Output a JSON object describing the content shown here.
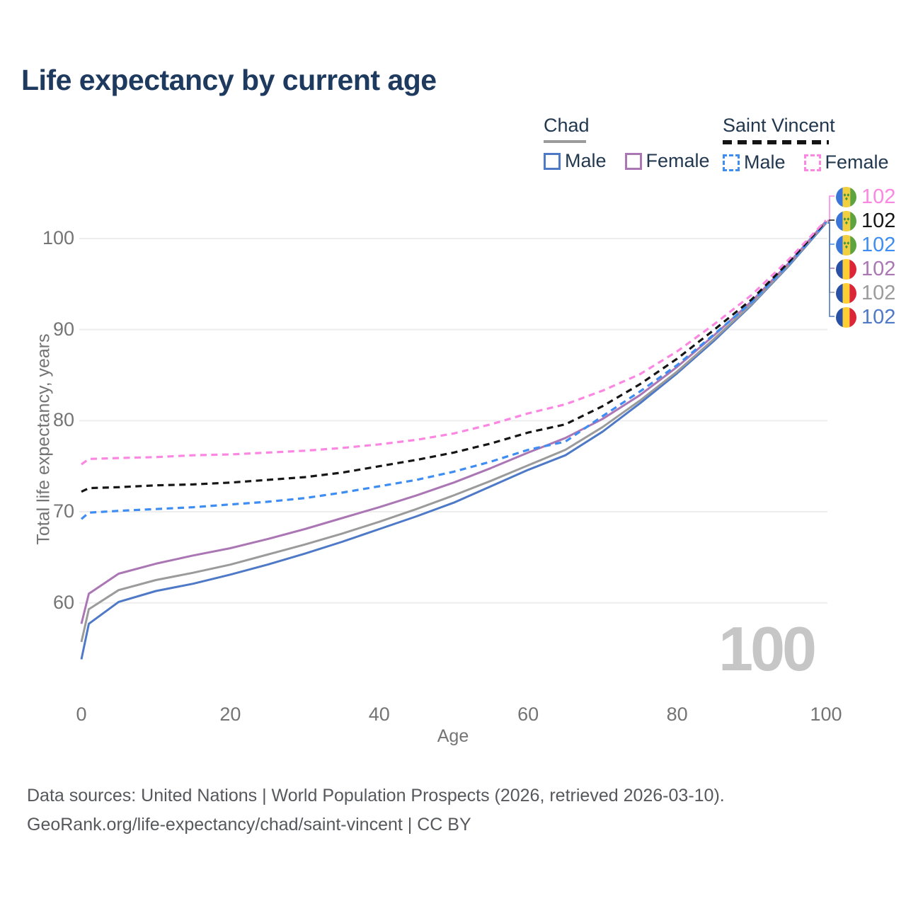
{
  "title": "Life expectancy by current age",
  "watermark_age": "100",
  "footer": {
    "line1": "Data sources: United Nations | World Population Prospects (2026, retrieved 2026-03-10).",
    "line2": "GeoRank.org/life-expectancy/chad/saint-vincent | CC BY"
  },
  "legend": {
    "chad": {
      "name": "Chad",
      "male_label": "Male",
      "female_label": "Female"
    },
    "saint_vincent": {
      "name": "Saint Vincent",
      "male_label": "Male",
      "female_label": "Female"
    }
  },
  "colors": {
    "title_navy": "#1e3a5f",
    "legend_text": "#22384f",
    "axis_gray": "#747474",
    "gridline": "#ededed",
    "watermark_gray": "#c6c6c6",
    "chad_male_blue": "#4e79c7",
    "chad_both_gray": "#9b9b9b",
    "chad_female_purple": "#ab76b4",
    "sv_male_azure": "#3e8df2",
    "sv_both_black": "#161616",
    "sv_female_pink": "#fc87e2"
  },
  "chart_data": {
    "type": "line",
    "title": "Life expectancy by current age",
    "xlabel": "Age",
    "ylabel": "Total life expectancy, years",
    "x_ticks": [
      0,
      20,
      40,
      60,
      80,
      100
    ],
    "y_ticks": [
      60,
      70,
      80,
      90,
      100
    ],
    "xlim": [
      0,
      100
    ],
    "ylim": [
      53,
      104
    ],
    "grid": "horizontal-only",
    "legend_position": "top-right",
    "ages": [
      0,
      1,
      5,
      10,
      15,
      20,
      25,
      30,
      35,
      40,
      45,
      50,
      55,
      60,
      65,
      70,
      75,
      80,
      85,
      90,
      95,
      100
    ],
    "series": [
      {
        "name": "Chad Male",
        "country": "Chad",
        "sex": "Male",
        "style": "solid",
        "color": "#4e79c7",
        "end_label": "102",
        "flag": "chad",
        "values": [
          53.8,
          57.7,
          60.1,
          61.3,
          62.1,
          63.1,
          64.2,
          65.4,
          66.7,
          68.1,
          69.5,
          71.0,
          72.8,
          74.6,
          76.2,
          78.8,
          81.9,
          85.2,
          88.8,
          92.7,
          97.0,
          101.7
        ]
      },
      {
        "name": "Chad Both sexes",
        "country": "Chad",
        "sex": "Both",
        "style": "solid",
        "color": "#9b9b9b",
        "end_label": "102",
        "flag": "chad",
        "values": [
          55.7,
          59.3,
          61.4,
          62.5,
          63.3,
          64.2,
          65.3,
          66.4,
          67.6,
          68.9,
          70.3,
          71.8,
          73.4,
          75.1,
          76.8,
          79.3,
          82.2,
          85.4,
          89.0,
          92.8,
          97.1,
          101.8
        ]
      },
      {
        "name": "Chad Female",
        "country": "Chad",
        "sex": "Female",
        "style": "solid",
        "color": "#ab76b4",
        "end_label": "102",
        "flag": "chad",
        "values": [
          57.7,
          61.0,
          63.2,
          64.3,
          65.2,
          66.0,
          67.0,
          68.1,
          69.3,
          70.5,
          71.8,
          73.2,
          74.8,
          76.5,
          78.1,
          80.2,
          82.8,
          85.9,
          89.4,
          93.1,
          97.3,
          101.9
        ]
      },
      {
        "name": "Saint Vincent Male",
        "country": "Saint Vincent",
        "sex": "Male",
        "style": "dashed",
        "color": "#3e8df2",
        "end_label": "102",
        "flag": "saint-vincent",
        "values": [
          69.2,
          69.9,
          70.1,
          70.3,
          70.5,
          70.8,
          71.1,
          71.5,
          72.1,
          72.8,
          73.5,
          74.4,
          75.5,
          76.8,
          77.7,
          80.5,
          83.2,
          86.1,
          89.5,
          93.0,
          97.2,
          101.8
        ]
      },
      {
        "name": "Saint Vincent Both sexes",
        "country": "Saint Vincent",
        "sex": "Both",
        "style": "dashed",
        "color": "#161616",
        "end_label": "102",
        "flag": "saint-vincent",
        "values": [
          72.2,
          72.6,
          72.7,
          72.9,
          73.0,
          73.2,
          73.5,
          73.8,
          74.3,
          75.0,
          75.7,
          76.5,
          77.5,
          78.7,
          79.6,
          81.6,
          84.0,
          86.8,
          90.0,
          93.3,
          97.4,
          101.9
        ]
      },
      {
        "name": "Saint Vincent Female",
        "country": "Saint Vincent",
        "sex": "Female",
        "style": "dashed",
        "color": "#fc87e2",
        "end_label": "102",
        "flag": "saint-vincent",
        "values": [
          75.2,
          75.8,
          75.9,
          76.0,
          76.2,
          76.3,
          76.5,
          76.7,
          77.0,
          77.4,
          77.9,
          78.6,
          79.6,
          80.8,
          81.8,
          83.3,
          85.1,
          87.6,
          90.6,
          93.8,
          97.7,
          102.0
        ]
      }
    ],
    "end_labels_top_to_bottom": [
      {
        "series": "Saint Vincent Female",
        "value": "102",
        "color": "#fc87e2",
        "flag": "saint-vincent"
      },
      {
        "series": "Saint Vincent Both sexes",
        "value": "102",
        "color": "#161616",
        "flag": "saint-vincent"
      },
      {
        "series": "Saint Vincent Male",
        "value": "102",
        "color": "#3e8df2",
        "flag": "saint-vincent"
      },
      {
        "series": "Chad Female",
        "value": "102",
        "color": "#ab76b4",
        "flag": "chad"
      },
      {
        "series": "Chad Both sexes",
        "value": "102",
        "color": "#9b9b9b",
        "flag": "chad"
      },
      {
        "series": "Chad Male",
        "value": "102",
        "color": "#4e79c7",
        "flag": "chad"
      }
    ]
  }
}
